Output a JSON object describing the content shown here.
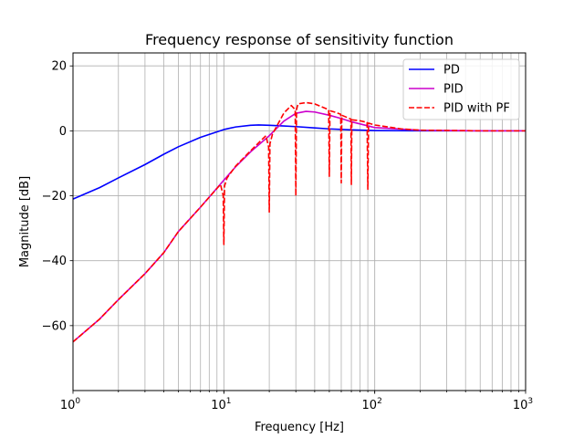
{
  "chart_data": {
    "type": "line",
    "title": "Frequency response of sensitivity function",
    "xlabel": "Frequency [Hz]",
    "ylabel": "Magnitude [dB]",
    "xscale": "log",
    "xlim": [
      1,
      1000
    ],
    "ylim": [
      -80,
      24
    ],
    "xticks": [
      1,
      10,
      100,
      1000
    ],
    "xtick_labels": [
      {
        "base": "10",
        "exp": "0"
      },
      {
        "base": "10",
        "exp": "1"
      },
      {
        "base": "10",
        "exp": "2"
      },
      {
        "base": "10",
        "exp": "3"
      }
    ],
    "yticks": [
      20,
      0,
      -20,
      -40,
      -60
    ],
    "ytick_labels": [
      "20",
      "0",
      "−20",
      "−40",
      "−60"
    ],
    "grid": "on (major and minor on x)",
    "legend_position": "top-right",
    "series": [
      {
        "name": "PD",
        "color": "#0000ff",
        "style": "solid",
        "x": [
          1,
          1.5,
          2,
          3,
          4,
          5,
          7,
          10,
          12,
          15,
          17,
          20,
          25,
          30,
          40,
          50,
          70,
          100,
          200,
          500,
          1000
        ],
        "y": [
          -21,
          -17.5,
          -14.5,
          -10.4,
          -7.2,
          -4.9,
          -2.0,
          0.4,
          1.2,
          1.7,
          1.8,
          1.7,
          1.5,
          1.3,
          0.9,
          0.6,
          0.3,
          0.1,
          0.0,
          0.0,
          0.0
        ]
      },
      {
        "name": "PID",
        "color": "#cc00cc",
        "style": "solid",
        "x": [
          1,
          1.5,
          2,
          3,
          4,
          5,
          7,
          10,
          12,
          15,
          20,
          25,
          30,
          35,
          40,
          50,
          60,
          70,
          100,
          200,
          500,
          1000
        ],
        "y": [
          -65,
          -58,
          -52,
          -44,
          -37.5,
          -31,
          -23.5,
          -15.2,
          -11.0,
          -6.5,
          -1.5,
          3.0,
          5.4,
          6.0,
          5.8,
          4.8,
          3.8,
          2.8,
          1.0,
          0.2,
          0.0,
          0.0
        ]
      },
      {
        "name": "PID with PF",
        "color": "#ff0000",
        "style": "dashed",
        "x": [
          1,
          1.5,
          2,
          3,
          4,
          5,
          7,
          9.5,
          9.9,
          10,
          10.1,
          10.5,
          12,
          15,
          19,
          19.8,
          20,
          20.2,
          21,
          25,
          28,
          29.7,
          30,
          30.3,
          31,
          35,
          40,
          45,
          49.5,
          50,
          50.5,
          55,
          59.5,
          60,
          60.5,
          65,
          69.5,
          70,
          70.5,
          80,
          89,
          90,
          91,
          100,
          150,
          200,
          500,
          1000
        ],
        "y": [
          -65,
          -58,
          -52,
          -44,
          -37.5,
          -31,
          -23.5,
          -16.5,
          -20,
          -35,
          -17,
          -14.5,
          -10.8,
          -6.2,
          -1.5,
          -5,
          -25,
          -4,
          -1,
          5.5,
          7.8,
          6.5,
          -20,
          6.5,
          8.3,
          8.7,
          8.3,
          7.3,
          6.5,
          -14,
          6.2,
          5.7,
          5.1,
          -16,
          4.8,
          4.2,
          3.6,
          -16.5,
          3.4,
          3.1,
          2.6,
          -18,
          2.4,
          1.8,
          0.6,
          0.2,
          0.0,
          0.0
        ]
      }
    ]
  }
}
